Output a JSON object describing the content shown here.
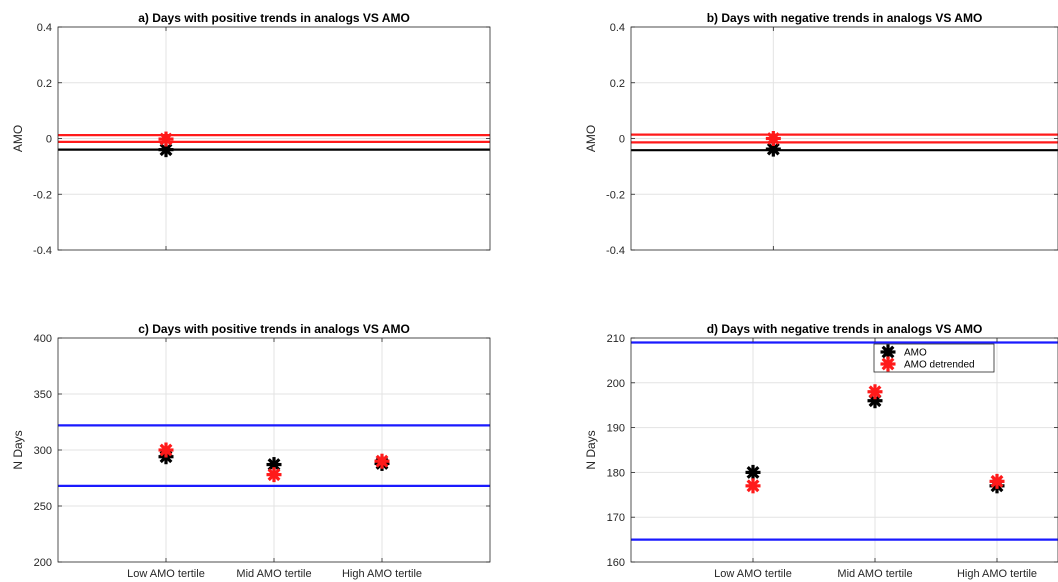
{
  "colors": {
    "black": "#000000",
    "red": "#ff1a1a",
    "blue": "#1a1aff"
  },
  "chart_data": [
    {
      "id": "a",
      "type": "scatter",
      "title": "a) Days with positive trends in analogs VS AMO",
      "ylabel": "AMO",
      "xlim": [
        0,
        4
      ],
      "ylim": [
        -0.4,
        0.4
      ],
      "yticks": [
        "-0.4",
        "-0.2",
        "0",
        "0.2",
        "0.4"
      ],
      "ytick_values": [
        -0.4,
        -0.2,
        0,
        0.2,
        0.4
      ],
      "xticks": [],
      "xtick_values": [
        1
      ],
      "grid": true,
      "hlines": [
        {
          "y": -0.04,
          "color": "black"
        },
        {
          "y": -0.012,
          "color": "red"
        },
        {
          "y": 0.012,
          "color": "red"
        }
      ],
      "series": [
        {
          "color": "black",
          "x": [
            1
          ],
          "y": [
            -0.04
          ]
        },
        {
          "color": "red",
          "x": [
            1
          ],
          "y": [
            -0.002
          ]
        }
      ]
    },
    {
      "id": "b",
      "type": "scatter",
      "title": "b) Days with negative trends in analogs VS AMO",
      "ylabel": "AMO",
      "xlim": [
        0,
        3
      ],
      "ylim": [
        -0.4,
        0.4
      ],
      "yticks": [
        "-0.4",
        "-0.2",
        "0",
        "0.2",
        "0.4"
      ],
      "ytick_values": [
        -0.4,
        -0.2,
        0,
        0.2,
        0.4
      ],
      "xticks": [],
      "xtick_values": [
        1
      ],
      "grid": true,
      "hlines": [
        {
          "y": -0.042,
          "color": "black"
        },
        {
          "y": -0.014,
          "color": "red"
        },
        {
          "y": 0.014,
          "color": "red"
        }
      ],
      "series": [
        {
          "color": "black",
          "x": [
            1
          ],
          "y": [
            -0.038
          ]
        },
        {
          "color": "red",
          "x": [
            1
          ],
          "y": [
            0.0
          ]
        }
      ]
    },
    {
      "id": "c",
      "type": "scatter",
      "title": "c) Days with positive trends in analogs VS AMO",
      "ylabel": "N Days",
      "xlim": [
        0,
        4
      ],
      "ylim": [
        200,
        400
      ],
      "yticks": [
        "200",
        "250",
        "300",
        "350",
        "400"
      ],
      "ytick_values": [
        200,
        250,
        300,
        350,
        400
      ],
      "xticks": [
        "Low AMO tertile",
        "Mid AMO tertile",
        "High AMO tertile"
      ],
      "xtick_values": [
        1,
        2,
        3
      ],
      "grid": true,
      "hlines": [
        {
          "y": 322,
          "color": "blue"
        },
        {
          "y": 268,
          "color": "blue"
        }
      ],
      "series": [
        {
          "color": "black",
          "x": [
            1,
            2,
            3
          ],
          "y": [
            294,
            287,
            288
          ]
        },
        {
          "color": "red",
          "x": [
            1,
            2,
            3
          ],
          "y": [
            300,
            278,
            290
          ]
        }
      ]
    },
    {
      "id": "d",
      "type": "scatter",
      "title": "d) Days with negative trends in analogs VS AMO",
      "ylabel": "N Days",
      "xlim": [
        0,
        3.5
      ],
      "ylim": [
        160,
        210
      ],
      "yticks": [
        "160",
        "170",
        "180",
        "190",
        "200",
        "210"
      ],
      "ytick_values": [
        160,
        170,
        180,
        190,
        200,
        210
      ],
      "xticks": [
        "Low AMO tertile",
        "Mid AMO tertile",
        "High AMO tertile"
      ],
      "xtick_values": [
        1,
        2,
        3
      ],
      "grid": true,
      "hlines": [
        {
          "y": 209,
          "color": "blue"
        },
        {
          "y": 165,
          "color": "blue"
        }
      ],
      "legend": {
        "position": "top-right",
        "entries": [
          {
            "label": "AMO",
            "color": "black"
          },
          {
            "label": "AMO detrended",
            "color": "red"
          }
        ]
      },
      "series": [
        {
          "name": "AMO",
          "color": "black",
          "x": [
            1,
            2,
            3
          ],
          "y": [
            180,
            196,
            177
          ]
        },
        {
          "name": "AMO detrended",
          "color": "red",
          "x": [
            1,
            2,
            3
          ],
          "y": [
            177,
            198,
            178
          ]
        }
      ]
    }
  ]
}
